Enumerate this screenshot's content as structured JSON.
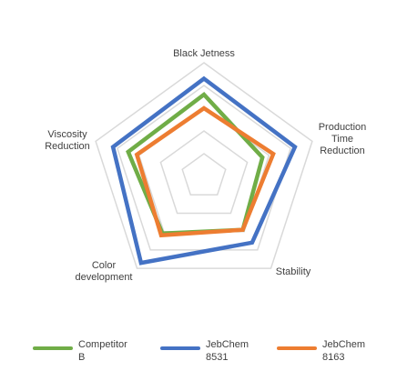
{
  "chart_data": {
    "type": "radar",
    "categories": [
      "Black Jetness",
      "Production Time Reduction",
      "Stability",
      "Color development",
      "Viscosity Reduction"
    ],
    "category_label_lines": [
      [
        "Black Jetness"
      ],
      [
        "Production",
        "Time",
        "Reduction"
      ],
      [
        "Stability"
      ],
      [
        "Color",
        "development"
      ],
      [
        "Viscosity",
        "Reduction"
      ]
    ],
    "rmax": 5,
    "grid_levels": 5,
    "grid": true,
    "legend_position": "bottom",
    "series": [
      {
        "name": "Competitor B",
        "legend_lines": [
          "Competitor",
          "B"
        ],
        "color": "#70ad47",
        "values": [
          3.6,
          2.7,
          2.9,
          3.1,
          3.5
        ]
      },
      {
        "name": "JebChem 8531",
        "legend_lines": [
          "JebChem",
          "8531"
        ],
        "color": "#4472c4",
        "values": [
          4.3,
          4.2,
          3.6,
          4.7,
          4.2
        ]
      },
      {
        "name": "JebChem 8163",
        "legend_lines": [
          "JebChem",
          "8163"
        ],
        "color": "#ed7d31",
        "values": [
          3.0,
          3.2,
          2.9,
          3.2,
          3.1
        ]
      }
    ]
  }
}
